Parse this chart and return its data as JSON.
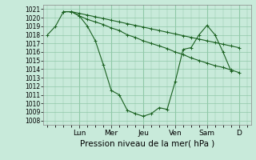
{
  "bg_color": "#c8eada",
  "grid_color": "#90c8a8",
  "line_color": "#1a6020",
  "title": "Pression niveau de la mer( hPa )",
  "ylim": [
    1007.5,
    1021.5
  ],
  "yticks": [
    1008,
    1009,
    1010,
    1011,
    1012,
    1013,
    1014,
    1015,
    1016,
    1017,
    1018,
    1019,
    1020,
    1021
  ],
  "day_labels": [
    "Lun",
    "Mer",
    "Jeu",
    "Ven",
    "Sam",
    "D"
  ],
  "day_tick_positions": [
    4,
    8,
    12,
    16,
    20,
    24
  ],
  "xlim": [
    -0.5,
    25.5
  ],
  "series1_x": [
    0,
    1,
    2,
    3,
    4,
    5,
    6,
    7,
    8,
    9,
    10,
    11,
    12,
    13,
    14,
    15,
    16,
    17,
    18,
    19,
    20,
    21,
    22,
    23
  ],
  "series1_y": [
    1018.0,
    1019.0,
    1020.7,
    1020.7,
    1020.2,
    1019.0,
    1017.3,
    1014.5,
    1011.5,
    1011.0,
    1009.2,
    1008.8,
    1008.5,
    1008.8,
    1009.5,
    1009.3,
    1012.5,
    1016.3,
    1016.5,
    1018.0,
    1019.1,
    1018.0,
    1016.0,
    1013.8
  ],
  "series2_x": [
    2,
    3,
    4,
    5,
    6,
    7,
    8,
    9,
    10,
    11,
    12,
    13,
    14,
    15,
    16,
    17,
    18,
    19,
    20,
    21,
    22,
    23,
    24
  ],
  "series2_y": [
    1020.7,
    1020.7,
    1020.2,
    1019.8,
    1019.5,
    1019.2,
    1018.8,
    1018.5,
    1018.0,
    1017.7,
    1017.3,
    1017.0,
    1016.7,
    1016.4,
    1016.0,
    1015.7,
    1015.3,
    1015.0,
    1014.7,
    1014.4,
    1014.2,
    1013.9,
    1013.6
  ],
  "series3_x": [
    2,
    3,
    4,
    5,
    6,
    7,
    8,
    9,
    10,
    11,
    12,
    13,
    14,
    15,
    16,
    17,
    18,
    19,
    20,
    21,
    22,
    23,
    24
  ],
  "series3_y": [
    1020.7,
    1020.7,
    1020.5,
    1020.3,
    1020.1,
    1019.9,
    1019.7,
    1019.5,
    1019.3,
    1019.1,
    1018.9,
    1018.7,
    1018.5,
    1018.3,
    1018.1,
    1017.9,
    1017.7,
    1017.5,
    1017.3,
    1017.1,
    1016.9,
    1016.7,
    1016.5
  ],
  "marker_size": 2.0,
  "line_width": 0.8,
  "ylabel_fontsize": 5.5,
  "xlabel_fontsize": 7.5,
  "xtick_fontsize": 6.5
}
